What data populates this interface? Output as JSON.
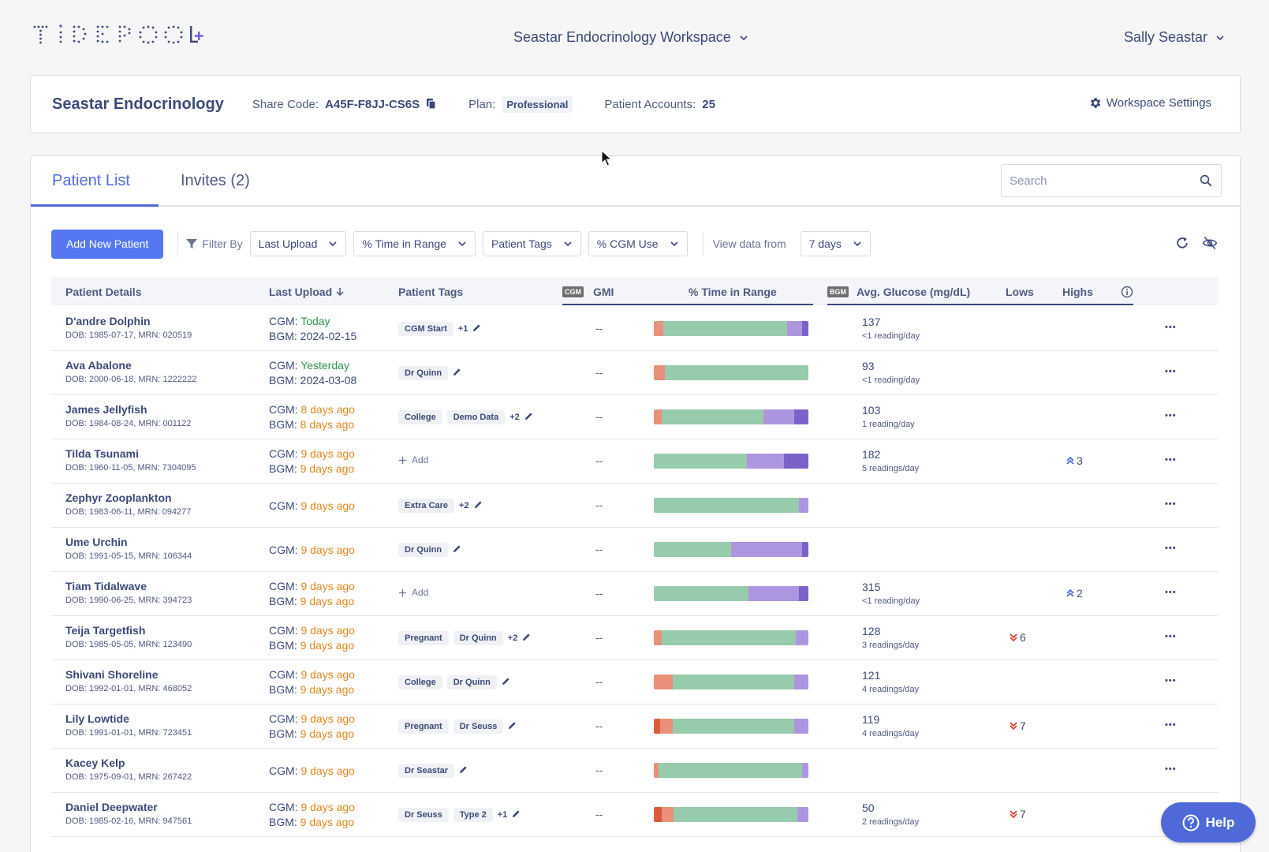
{
  "header": {
    "logo_text": "TIDEPOOL",
    "logo_plus": "+",
    "workspace": "Seastar Endocrinology Workspace",
    "user": "Sally Seastar"
  },
  "clinic": {
    "name": "Seastar Endocrinology",
    "share_code_label": "Share Code:",
    "share_code": "A45F-F8JJ-CS6S",
    "plan_label": "Plan:",
    "plan": "Professional",
    "accounts_label": "Patient Accounts:",
    "accounts": "25",
    "settings_label": "Workspace Settings"
  },
  "tabs": {
    "patient_list": "Patient List",
    "invites": "Invites (2)"
  },
  "search": {
    "placeholder": "Search"
  },
  "toolbar": {
    "add_patient": "Add New Patient",
    "filter_by": "Filter By",
    "filters": [
      "Last Upload",
      "% Time in Range",
      "Patient Tags",
      "% CGM Use"
    ],
    "view_label": "View data from",
    "view_value": "7 days"
  },
  "columns": {
    "patient_details": "Patient Details",
    "last_upload": "Last Upload",
    "patient_tags": "Patient Tags",
    "cgm_badge": "CGM",
    "gmi": "GMI",
    "tir": "% Time in Range",
    "bgm_badge": "BGM",
    "avg_glucose": "Avg. Glucose (mg/dL)",
    "lows": "Lows",
    "highs": "Highs"
  },
  "colors": {
    "very_low": "#d95b3d",
    "low": "#e8907a",
    "target": "#96ccab",
    "high": "#ad96e0",
    "very_high": "#7a62c8"
  },
  "patients": [
    {
      "name": "D'andre Dolphin",
      "dob": "DOB: 1985-07-17, MRN: 020519",
      "cgm_label": "CGM: ",
      "cgm": "Today",
      "cgm_color": "green",
      "bgm_label": "BGM: ",
      "bgm": "2024-02-15",
      "bgm_color": "",
      "tags": [
        "CGM Start"
      ],
      "tags_more": "+1",
      "gmi": "--",
      "tir": [
        0,
        6,
        80,
        10,
        4
      ],
      "avg": "137",
      "avg_sub": "<1 reading/day",
      "lows": "",
      "highs": ""
    },
    {
      "name": "Ava Abalone",
      "dob": "DOB: 2000-06-18, MRN: 1222222",
      "cgm_label": "CGM: ",
      "cgm": "Yesterday",
      "cgm_color": "green",
      "bgm_label": "BGM: ",
      "bgm": "2024-03-08",
      "bgm_color": "",
      "tags": [
        "Dr Quinn"
      ],
      "tags_more": "",
      "gmi": "--",
      "tir": [
        0,
        7,
        93,
        0,
        0
      ],
      "avg": "93",
      "avg_sub": "<1 reading/day",
      "lows": "",
      "highs": ""
    },
    {
      "name": "James Jellyfish",
      "dob": "DOB: 1984-08-24, MRN: 001122",
      "cgm_label": "CGM: ",
      "cgm": "8 days ago",
      "cgm_color": "orange",
      "bgm_label": "BGM: ",
      "bgm": "8 days ago",
      "bgm_color": "orange",
      "tags": [
        "College",
        "Demo Data"
      ],
      "tags_more": "+2",
      "gmi": "--",
      "tir": [
        0,
        5,
        66,
        20,
        9
      ],
      "avg": "103",
      "avg_sub": "1 reading/day",
      "lows": "",
      "highs": ""
    },
    {
      "name": "Tilda Tsunami",
      "dob": "DOB: 1960-11-05, MRN: 7304095",
      "cgm_label": "CGM: ",
      "cgm": "9 days ago",
      "cgm_color": "orange",
      "bgm_label": "BGM: ",
      "bgm": "9 days ago",
      "bgm_color": "orange",
      "tags": [],
      "tags_more": "",
      "add_label": "Add",
      "gmi": "--",
      "tir": [
        0,
        0,
        60,
        24,
        16
      ],
      "avg": "182",
      "avg_sub": "5 readings/day",
      "lows": "",
      "highs": "3"
    },
    {
      "name": "Zephyr Zooplankton",
      "dob": "DOB: 1983-06-11, MRN: 094277",
      "cgm_label": "CGM: ",
      "cgm": "9 days ago",
      "cgm_color": "orange",
      "bgm_label": "",
      "bgm": "",
      "bgm_color": "",
      "tags": [
        "Extra Care"
      ],
      "tags_more": "+2",
      "gmi": "--",
      "tir": [
        0,
        0,
        94,
        6,
        0
      ],
      "avg": "",
      "avg_sub": "",
      "lows": "",
      "highs": ""
    },
    {
      "name": "Ume Urchin",
      "dob": "DOB: 1991-05-15, MRN: 106344",
      "cgm_label": "CGM: ",
      "cgm": "9 days ago",
      "cgm_color": "orange",
      "bgm_label": "",
      "bgm": "",
      "bgm_color": "",
      "tags": [
        "Dr Quinn"
      ],
      "tags_more": "",
      "gmi": "--",
      "tir": [
        0,
        0,
        50,
        46,
        4
      ],
      "avg": "",
      "avg_sub": "",
      "lows": "",
      "highs": ""
    },
    {
      "name": "Tiam Tidalwave",
      "dob": "DOB: 1990-06-25, MRN: 394723",
      "cgm_label": "CGM: ",
      "cgm": "9 days ago",
      "cgm_color": "orange",
      "bgm_label": "BGM: ",
      "bgm": "9 days ago",
      "bgm_color": "orange",
      "tags": [],
      "tags_more": "",
      "add_label": "Add",
      "gmi": "--",
      "tir": [
        0,
        0,
        61,
        33,
        6
      ],
      "avg": "315",
      "avg_sub": "<1 reading/day",
      "lows": "",
      "highs": "2"
    },
    {
      "name": "Teija Targetfish",
      "dob": "DOB: 1985-05-05, MRN: 123490",
      "cgm_label": "CGM: ",
      "cgm": "9 days ago",
      "cgm_color": "orange",
      "bgm_label": "BGM: ",
      "bgm": "9 days ago",
      "bgm_color": "orange",
      "tags": [
        "Pregnant",
        "Dr Quinn"
      ],
      "tags_more": "+2",
      "gmi": "--",
      "tir": [
        0,
        5,
        87,
        8,
        0
      ],
      "avg": "128",
      "avg_sub": "3 readings/day",
      "lows": "6",
      "highs": ""
    },
    {
      "name": "Shivani Shoreline",
      "dob": "DOB: 1992-01-01, MRN: 468052",
      "cgm_label": "CGM: ",
      "cgm": "9 days ago",
      "cgm_color": "orange",
      "bgm_label": "BGM: ",
      "bgm": "9 days ago",
      "bgm_color": "orange",
      "tags": [
        "College",
        "Dr Quinn"
      ],
      "tags_more": "",
      "gmi": "--",
      "tir": [
        0,
        12,
        79,
        9,
        0
      ],
      "avg": "121",
      "avg_sub": "4 readings/day",
      "lows": "",
      "highs": ""
    },
    {
      "name": "Lily Lowtide",
      "dob": "DOB: 1991-01-01, MRN: 723451",
      "cgm_label": "CGM: ",
      "cgm": "9 days ago",
      "cgm_color": "orange",
      "bgm_label": "BGM: ",
      "bgm": "9 days ago",
      "bgm_color": "orange",
      "tags": [
        "Pregnant",
        "Dr Seuss"
      ],
      "tags_more": "",
      "gmi": "--",
      "tir": [
        4,
        8,
        79,
        9,
        0
      ],
      "avg": "119",
      "avg_sub": "4 readings/day",
      "lows": "7",
      "highs": ""
    },
    {
      "name": "Kacey Kelp",
      "dob": "DOB: 1975-09-01, MRN: 267422",
      "cgm_label": "CGM: ",
      "cgm": "9 days ago",
      "cgm_color": "orange",
      "bgm_label": "",
      "bgm": "",
      "bgm_color": "",
      "tags": [
        "Dr Seastar"
      ],
      "tags_more": "",
      "gmi": "--",
      "tir": [
        0,
        3,
        93,
        4,
        0
      ],
      "avg": "",
      "avg_sub": "",
      "lows": "",
      "highs": ""
    },
    {
      "name": "Daniel Deepwater",
      "dob": "DOB: 1985-02-16, MRN: 947561",
      "cgm_label": "CGM: ",
      "cgm": "9 days ago",
      "cgm_color": "orange",
      "bgm_label": "BGM: ",
      "bgm": "9 days ago",
      "bgm_color": "orange",
      "tags": [
        "Dr Seuss",
        "Type 2"
      ],
      "tags_more": "+1",
      "gmi": "--",
      "tir": [
        5,
        8,
        80,
        7,
        0
      ],
      "avg": "50",
      "avg_sub": "2 readings/day",
      "lows": "7",
      "highs": ""
    }
  ],
  "help": {
    "label": "Help"
  }
}
